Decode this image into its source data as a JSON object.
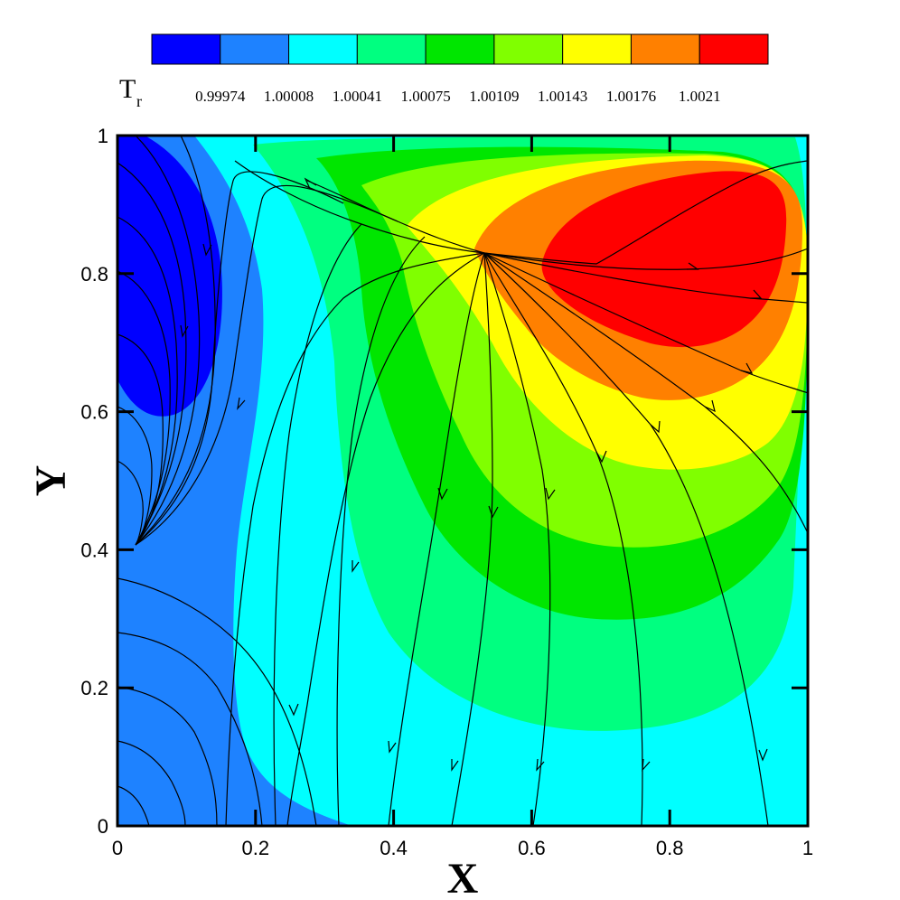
{
  "chart_data": {
    "type": "heatmap",
    "title": "",
    "xlabel": "X",
    "ylabel": "Y",
    "xlim": [
      0,
      1
    ],
    "ylim": [
      0,
      1
    ],
    "x_ticks": [
      "0",
      "0.2",
      "0.4",
      "0.6",
      "0.8",
      "1"
    ],
    "y_ticks": [
      "0",
      "0.2",
      "0.4",
      "0.6",
      "0.8",
      "1"
    ],
    "colorbar": {
      "title": "T",
      "title_subscript": "r",
      "levels": [
        "0.99974",
        "1.00008",
        "1.00041",
        "1.00075",
        "1.00109",
        "1.00143",
        "1.00176",
        "1.0021"
      ],
      "colors": [
        "#0000ff",
        "#1e82ff",
        "#00ffff",
        "#00ff80",
        "#00e600",
        "#80ff00",
        "#ffff00",
        "#ff8000",
        "#ff0000"
      ]
    },
    "overlay": "streamlines",
    "features": [
      {
        "kind": "temperature-max",
        "x": 0.82,
        "y": 0.84
      },
      {
        "kind": "temperature-min",
        "x": 0.06,
        "y": 0.78
      },
      {
        "kind": "streamline-source",
        "x": 0.53,
        "y": 0.83
      },
      {
        "kind": "streamline-sink",
        "x": 0.02,
        "y": 0.41
      }
    ]
  }
}
